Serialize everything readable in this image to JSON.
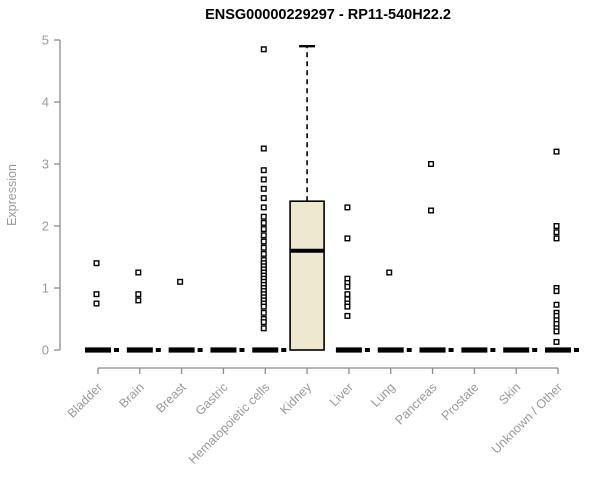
{
  "title": "ENSG00000229297 - RP11-540H22.2",
  "chart_data": {
    "type": "boxplot",
    "title": "ENSG00000229297 - RP11-540H22.2",
    "xlabel": "",
    "ylabel": "Expression",
    "ylim": [
      0,
      5
    ],
    "yticks": [
      0,
      1,
      2,
      3,
      4,
      5
    ],
    "grid": false,
    "legend": "none",
    "categories": [
      "Bladder",
      "Brain",
      "Breast",
      "Gastric",
      "Hematopoietic cells",
      "Kidney",
      "Liver",
      "Lung",
      "Pancreas",
      "Prostate",
      "Skin",
      "Unknown / Other"
    ],
    "series": [
      {
        "category": "Bladder",
        "box": {
          "q1": 0,
          "median": 0,
          "q3": 0,
          "whisker_low": 0,
          "whisker_high": 0
        },
        "points": [
          1.4,
          0.9,
          0.75
        ]
      },
      {
        "category": "Brain",
        "box": {
          "q1": 0,
          "median": 0,
          "q3": 0,
          "whisker_low": 0,
          "whisker_high": 0
        },
        "points": [
          1.25,
          0.9,
          0.8
        ]
      },
      {
        "category": "Breast",
        "box": {
          "q1": 0,
          "median": 0,
          "q3": 0,
          "whisker_low": 0,
          "whisker_high": 0
        },
        "points": [
          1.1
        ]
      },
      {
        "category": "Gastric",
        "box": {
          "q1": 0,
          "median": 0,
          "q3": 0,
          "whisker_low": 0,
          "whisker_high": 0
        },
        "points": []
      },
      {
        "category": "Hematopoietic cells",
        "box": {
          "q1": 0,
          "median": 0,
          "q3": 0,
          "whisker_low": 0,
          "whisker_high": 0
        },
        "points": [
          4.85,
          3.25,
          2.9,
          2.75,
          2.6,
          2.45,
          2.3,
          2.15,
          2.05,
          1.95,
          1.85,
          1.75,
          1.65,
          1.55,
          1.45,
          1.4,
          1.35,
          1.3,
          1.25,
          1.2,
          1.15,
          1.1,
          1.05,
          1.0,
          0.95,
          0.9,
          0.85,
          0.8,
          0.75,
          0.7,
          0.6,
          0.5,
          0.45,
          0.35
        ]
      },
      {
        "category": "Kidney",
        "box": {
          "q1": 0,
          "median": 1.6,
          "q3": 2.4,
          "whisker_low": 0,
          "whisker_high": 4.9
        },
        "points": []
      },
      {
        "category": "Liver",
        "box": {
          "q1": 0,
          "median": 0,
          "q3": 0,
          "whisker_low": 0,
          "whisker_high": 0
        },
        "points": [
          2.3,
          1.8,
          1.15,
          1.08,
          1.02,
          0.9,
          0.82,
          0.75,
          0.7,
          0.55
        ]
      },
      {
        "category": "Lung",
        "box": {
          "q1": 0,
          "median": 0,
          "q3": 0,
          "whisker_low": 0,
          "whisker_high": 0
        },
        "points": [
          1.25
        ]
      },
      {
        "category": "Pancreas",
        "box": {
          "q1": 0,
          "median": 0,
          "q3": 0,
          "whisker_low": 0,
          "whisker_high": 0
        },
        "points": [
          3.0,
          2.25
        ]
      },
      {
        "category": "Prostate",
        "box": {
          "q1": 0,
          "median": 0,
          "q3": 0,
          "whisker_low": 0,
          "whisker_high": 0
        },
        "points": []
      },
      {
        "category": "Skin",
        "box": {
          "q1": 0,
          "median": 0,
          "q3": 0,
          "whisker_low": 0,
          "whisker_high": 0
        },
        "points": []
      },
      {
        "category": "Unknown / Other",
        "box": {
          "q1": 0,
          "median": 0,
          "q3": 0,
          "whisker_low": 0,
          "whisker_high": 0
        },
        "points": [
          3.2,
          2.0,
          1.9,
          1.8,
          1.0,
          0.95,
          0.73,
          0.6,
          0.55,
          0.48,
          0.42,
          0.35,
          0.3,
          0.13
        ]
      }
    ],
    "colors": {
      "box_fill": "#EDE8CE",
      "box_stroke": "#000000",
      "median": "#000000",
      "zero_bar": "#000000",
      "point_stroke": "#000000",
      "point_fill": "#FFFFFF",
      "axis": "#8C8C8C",
      "tick_label": "#999999",
      "title": "#000000",
      "background": "#FFFFFF"
    }
  }
}
